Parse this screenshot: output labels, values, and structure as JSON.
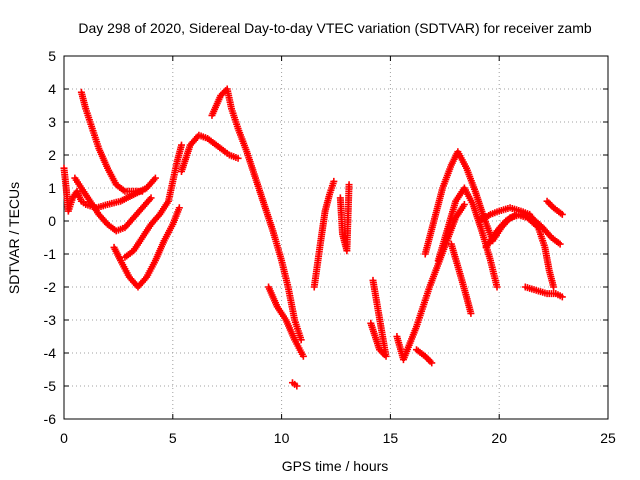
{
  "chart_data": {
    "type": "scatter",
    "title": "Day 298 of 2020, Sidereal Day-to-day VTEC variation (SDTVAR) for receiver zamb",
    "xlabel": "GPS time / hours",
    "ylabel": "SDTVAR / TECUs",
    "xlim": [
      0,
      25
    ],
    "ylim": [
      -6,
      5
    ],
    "xticks": [
      "0",
      "5",
      "10",
      "15",
      "20",
      "25"
    ],
    "yticks": [
      "-6",
      "-5",
      "-4",
      "-3",
      "-2",
      "-1",
      "0",
      "1",
      "2",
      "3",
      "4",
      "5"
    ],
    "grid": true,
    "marker": "+",
    "color": "#ff0000",
    "series": [
      {
        "points": [
          [
            0.8,
            3.9
          ],
          [
            1.0,
            3.4
          ],
          [
            1.3,
            2.8
          ],
          [
            1.6,
            2.2
          ],
          [
            2.0,
            1.6
          ],
          [
            2.4,
            1.1
          ],
          [
            2.8,
            0.9
          ],
          [
            3.2,
            0.9
          ],
          [
            3.6,
            0.9
          ]
        ]
      },
      {
        "points": [
          [
            0.0,
            1.6
          ],
          [
            0.1,
            1.0
          ],
          [
            0.2,
            0.3
          ],
          [
            0.4,
            0.7
          ],
          [
            0.6,
            0.9
          ],
          [
            0.8,
            0.6
          ],
          [
            1.0,
            0.5
          ],
          [
            1.5,
            0.4
          ],
          [
            2.0,
            0.5
          ],
          [
            2.6,
            0.6
          ],
          [
            3.2,
            0.8
          ],
          [
            3.8,
            1.0
          ],
          [
            4.2,
            1.3
          ]
        ]
      },
      {
        "points": [
          [
            0.5,
            1.3
          ],
          [
            0.8,
            1.0
          ],
          [
            1.2,
            0.6
          ],
          [
            1.6,
            0.2
          ],
          [
            2.0,
            -0.1
          ],
          [
            2.4,
            -0.3
          ],
          [
            2.8,
            -0.2
          ],
          [
            3.2,
            0.1
          ],
          [
            3.6,
            0.4
          ],
          [
            4.0,
            0.7
          ]
        ]
      },
      {
        "points": [
          [
            2.3,
            -0.8
          ],
          [
            2.6,
            -1.2
          ],
          [
            3.0,
            -1.7
          ],
          [
            3.4,
            -2.0
          ],
          [
            3.8,
            -1.7
          ],
          [
            4.2,
            -1.2
          ],
          [
            4.6,
            -0.6
          ],
          [
            5.0,
            -0.1
          ],
          [
            5.3,
            0.4
          ]
        ]
      },
      {
        "points": [
          [
            2.8,
            -1.1
          ],
          [
            3.2,
            -0.9
          ],
          [
            3.6,
            -0.5
          ],
          [
            4.0,
            -0.1
          ],
          [
            4.4,
            0.2
          ],
          [
            4.8,
            0.6
          ],
          [
            5.0,
            1.2
          ],
          [
            5.2,
            1.8
          ],
          [
            5.4,
            2.3
          ]
        ]
      },
      {
        "points": [
          [
            5.4,
            1.5
          ],
          [
            5.8,
            2.3
          ],
          [
            6.2,
            2.6
          ],
          [
            6.6,
            2.5
          ],
          [
            7.0,
            2.3
          ],
          [
            7.4,
            2.1
          ],
          [
            7.6,
            2.0
          ],
          [
            8.0,
            1.9
          ]
        ]
      },
      {
        "points": [
          [
            6.8,
            3.2
          ],
          [
            7.2,
            3.8
          ],
          [
            7.5,
            4.0
          ],
          [
            7.7,
            3.4
          ],
          [
            8.0,
            2.8
          ],
          [
            8.4,
            2.1
          ],
          [
            8.8,
            1.3
          ],
          [
            9.2,
            0.5
          ],
          [
            9.6,
            -0.3
          ],
          [
            10.0,
            -1.2
          ],
          [
            10.3,
            -2.0
          ],
          [
            10.6,
            -3.0
          ],
          [
            10.9,
            -3.6
          ]
        ]
      },
      {
        "points": [
          [
            9.4,
            -2.0
          ],
          [
            9.8,
            -2.6
          ],
          [
            10.2,
            -3.0
          ],
          [
            10.6,
            -3.6
          ],
          [
            11.0,
            -4.1
          ]
        ]
      },
      {
        "points": [
          [
            10.5,
            -4.9
          ],
          [
            10.7,
            -5.0
          ]
        ]
      },
      {
        "points": [
          [
            11.5,
            -2.0
          ],
          [
            11.8,
            -0.6
          ],
          [
            12.0,
            0.3
          ],
          [
            12.2,
            0.8
          ],
          [
            12.4,
            1.2
          ]
        ]
      },
      {
        "points": [
          [
            12.7,
            0.7
          ],
          [
            12.8,
            -0.4
          ],
          [
            13.0,
            -0.9
          ],
          [
            13.1,
            1.1
          ]
        ]
      },
      {
        "points": [
          [
            14.1,
            -3.1
          ],
          [
            14.5,
            -3.9
          ],
          [
            14.8,
            -4.1
          ],
          [
            14.2,
            -1.8
          ]
        ]
      },
      {
        "points": [
          [
            15.3,
            -3.5
          ],
          [
            15.6,
            -4.2
          ],
          [
            15.9,
            -3.7
          ],
          [
            16.2,
            -3.2
          ],
          [
            16.5,
            -2.6
          ],
          [
            16.8,
            -2.0
          ],
          [
            17.2,
            -1.3
          ],
          [
            17.6,
            -0.6
          ],
          [
            18.0,
            0.1
          ],
          [
            18.4,
            0.5
          ]
        ]
      },
      {
        "points": [
          [
            16.2,
            -3.9
          ],
          [
            16.6,
            -4.1
          ],
          [
            16.9,
            -4.3
          ]
        ]
      },
      {
        "points": [
          [
            16.6,
            -1.0
          ],
          [
            17.0,
            0.0
          ],
          [
            17.4,
            1.0
          ],
          [
            17.8,
            1.7
          ],
          [
            18.1,
            2.1
          ],
          [
            18.5,
            1.6
          ],
          [
            18.9,
            0.9
          ],
          [
            19.3,
            0.1
          ],
          [
            19.7,
            -0.6
          ],
          [
            20.1,
            -0.2
          ],
          [
            20.5,
            0.1
          ],
          [
            21.0,
            0.2
          ],
          [
            21.5,
            0.1
          ],
          [
            22.0,
            -0.2
          ],
          [
            22.4,
            -0.5
          ],
          [
            22.8,
            -0.7
          ]
        ]
      },
      {
        "points": [
          [
            17.2,
            -1.2
          ],
          [
            17.6,
            -0.3
          ],
          [
            18.0,
            0.6
          ],
          [
            18.4,
            1.0
          ],
          [
            18.8,
            0.5
          ],
          [
            19.2,
            -0.3
          ],
          [
            19.6,
            -1.2
          ],
          [
            19.9,
            -2.0
          ]
        ]
      },
      {
        "points": [
          [
            17.8,
            -0.7
          ],
          [
            18.2,
            -1.6
          ],
          [
            18.5,
            -2.3
          ],
          [
            18.7,
            -2.8
          ]
        ]
      },
      {
        "points": [
          [
            19.1,
            0.0
          ],
          [
            19.6,
            0.2
          ],
          [
            20.0,
            0.3
          ],
          [
            20.5,
            0.4
          ],
          [
            21.0,
            0.3
          ],
          [
            21.4,
            0.2
          ],
          [
            21.8,
            -0.2
          ],
          [
            22.1,
            -0.8
          ],
          [
            22.3,
            -1.5
          ],
          [
            22.5,
            -2.0
          ]
        ]
      },
      {
        "points": [
          [
            19.4,
            -0.8
          ],
          [
            19.9,
            -0.3
          ],
          [
            20.3,
            0.0
          ],
          [
            20.8,
            0.2
          ],
          [
            21.3,
            0.1
          ],
          [
            21.8,
            -0.2
          ]
        ]
      },
      {
        "points": [
          [
            21.2,
            -2.0
          ],
          [
            21.7,
            -2.1
          ],
          [
            22.2,
            -2.2
          ],
          [
            22.6,
            -2.2
          ],
          [
            22.9,
            -2.3
          ]
        ]
      },
      {
        "points": [
          [
            22.2,
            0.6
          ],
          [
            22.5,
            0.4
          ],
          [
            22.9,
            0.2
          ]
        ]
      }
    ]
  }
}
